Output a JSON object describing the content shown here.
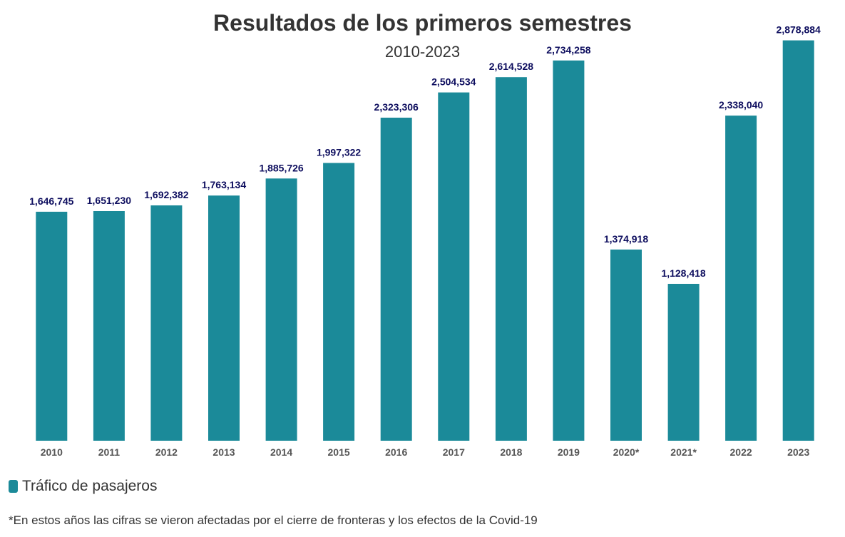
{
  "chart_data": {
    "type": "bar",
    "title": "Resultados de los primeros semestres",
    "subtitle": "2010-2023",
    "categories": [
      "2010",
      "2011",
      "2012",
      "2013",
      "2014",
      "2015",
      "2016",
      "2017",
      "2018",
      "2019",
      "2020*",
      "2021*",
      "2022",
      "2023"
    ],
    "series": [
      {
        "name": "Tráfico de pasajeros",
        "color": "#1b8a99",
        "values": [
          1646745,
          1651230,
          1692382,
          1763134,
          1885726,
          1997322,
          2323306,
          2504534,
          2614528,
          2734258,
          1374918,
          1128418,
          2338040,
          2878884
        ],
        "labels": [
          "1,646,745",
          "1,651,230",
          "1,692,382",
          "1,763,134",
          "1,885,726",
          "1,997,322",
          "2,323,306",
          "2,504,534",
          "2,614,528",
          "2,734,258",
          "1,374,918",
          "1,128,418",
          "2,338,040",
          "2,878,884"
        ]
      }
    ],
    "ylim": [
      0,
      3000000
    ],
    "grid": false,
    "legend_position": "bottom-left",
    "footnote": "*En estos años las cifras se vieron afectadas por el cierre de fronteras y los efectos de la Covid-19"
  }
}
